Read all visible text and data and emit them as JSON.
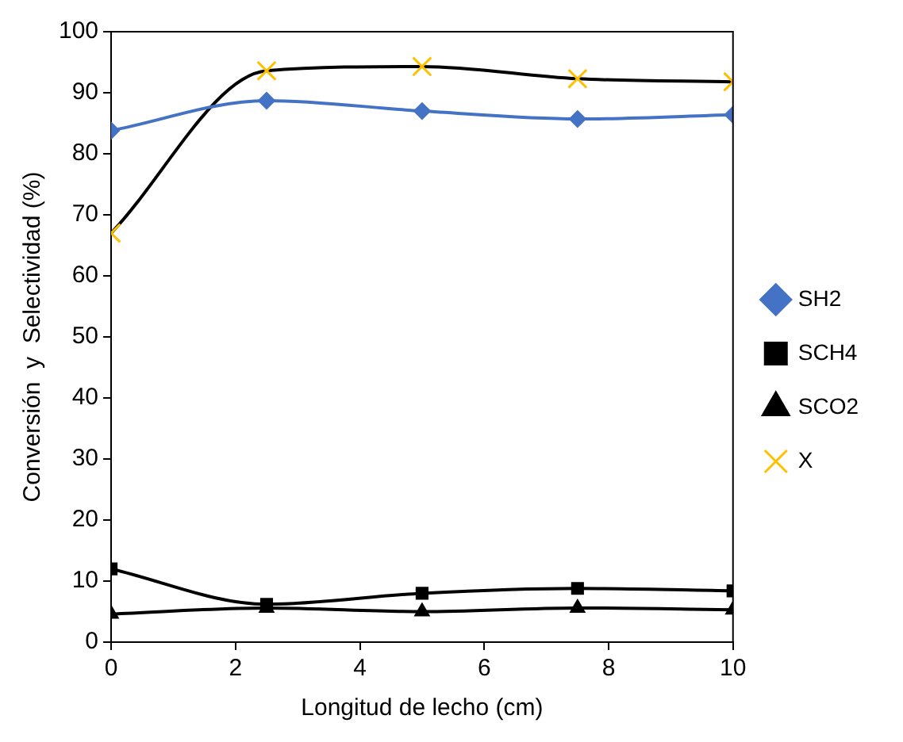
{
  "chart_data": {
    "type": "line",
    "xlabel": "Longitud de lecho (cm)",
    "ylabel": "Conversión  y  Selectividad (%)",
    "xlim": [
      0,
      10
    ],
    "xticks": [
      0,
      2,
      4,
      6,
      8,
      10
    ],
    "ylim": [
      0,
      100
    ],
    "yticks": [
      0,
      10,
      20,
      30,
      40,
      50,
      60,
      70,
      80,
      90,
      100
    ],
    "grid": false,
    "legend": "right",
    "series": [
      {
        "name": "SH2",
        "color": "#4472c4",
        "marker": "diamond",
        "x": [
          0,
          2.5,
          5,
          7.5,
          10
        ],
        "values": [
          83.8,
          88.7,
          87,
          85.7,
          86.4
        ]
      },
      {
        "name": "SCH4",
        "color": "#000000",
        "marker": "square",
        "x": [
          0,
          2.5,
          5,
          7.5,
          10
        ],
        "values": [
          12,
          6.2,
          8,
          8.8,
          8.4
        ]
      },
      {
        "name": "SCO2",
        "color": "#000000",
        "marker": "triangle",
        "x": [
          0,
          2.5,
          5,
          7.5,
          10
        ],
        "values": [
          4.6,
          5.6,
          5,
          5.6,
          5.3
        ]
      },
      {
        "name": "X",
        "color": "#000000",
        "colors": [
          "#ffc000",
          "#ffc000",
          "#ffc000",
          "#ffc000",
          "#ffc000"
        ],
        "marker": "cross",
        "x": [
          0,
          2.5,
          5,
          7.5,
          10
        ],
        "values": [
          67,
          93.6,
          94.3,
          92.3,
          91.8
        ]
      }
    ]
  }
}
